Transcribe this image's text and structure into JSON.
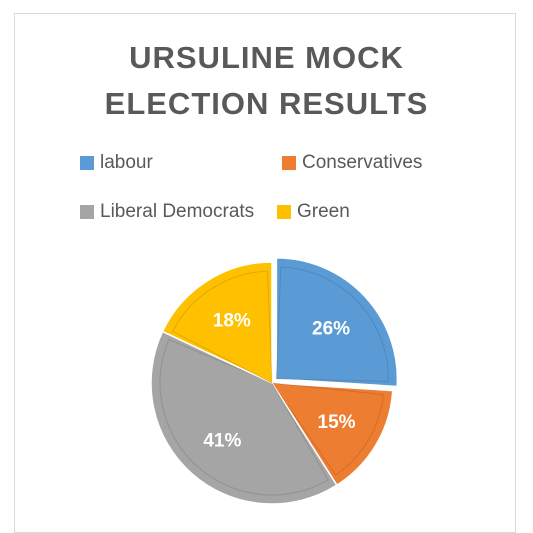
{
  "chart_data": {
    "type": "pie",
    "title_lines": [
      "URSULINE MOCK",
      "ELECTION RESULTS"
    ],
    "legend_position": "top",
    "categories": [
      "labour",
      "Conservatives",
      "Liberal Democrats",
      "Green"
    ],
    "values": [
      26,
      15,
      41,
      18
    ],
    "labels": [
      "26%",
      "15%",
      "41%",
      "18%"
    ],
    "colors": [
      "#5b9bd5",
      "#ed7d31",
      "#a5a5a5",
      "#ffc000"
    ],
    "explode": [
      true,
      false,
      false,
      false
    ]
  }
}
